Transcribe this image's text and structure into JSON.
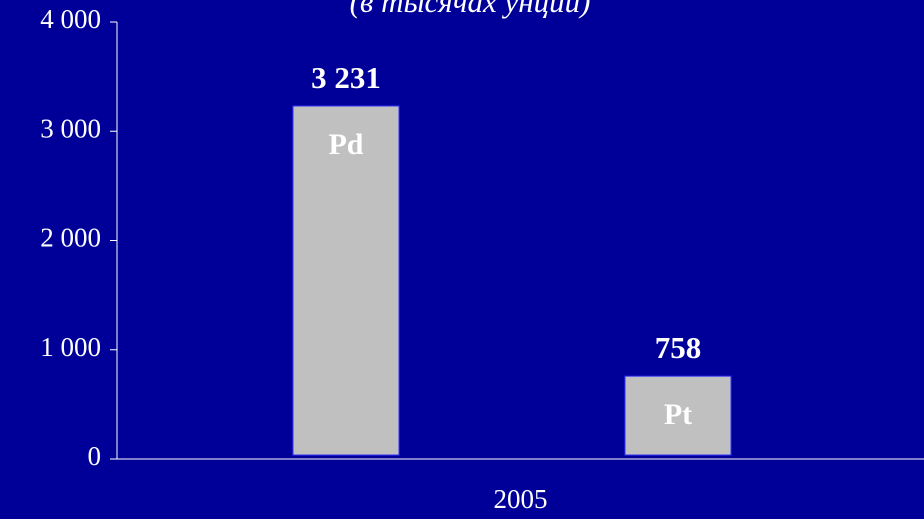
{
  "chart_data": {
    "type": "bar",
    "subtitle": "(в тысячах унций)",
    "categories": [
      "2005"
    ],
    "series": [
      {
        "name": "Pd",
        "color": "#c0c0c0",
        "values": [
          3231
        ],
        "value_labels": [
          "3 231"
        ]
      },
      {
        "name": "Pt",
        "color": "#c0c0c0",
        "values": [
          758
        ],
        "value_labels": [
          "758"
        ]
      }
    ],
    "ylim": [
      0,
      4000
    ],
    "yticks": [
      0,
      {
        "value": 1000,
        "label": "1 000"
      },
      {
        "value": 2000,
        "label": "2 000"
      },
      {
        "value": 3000,
        "label": "3 000"
      },
      {
        "value": 4000,
        "label": "4 000"
      }
    ]
  }
}
